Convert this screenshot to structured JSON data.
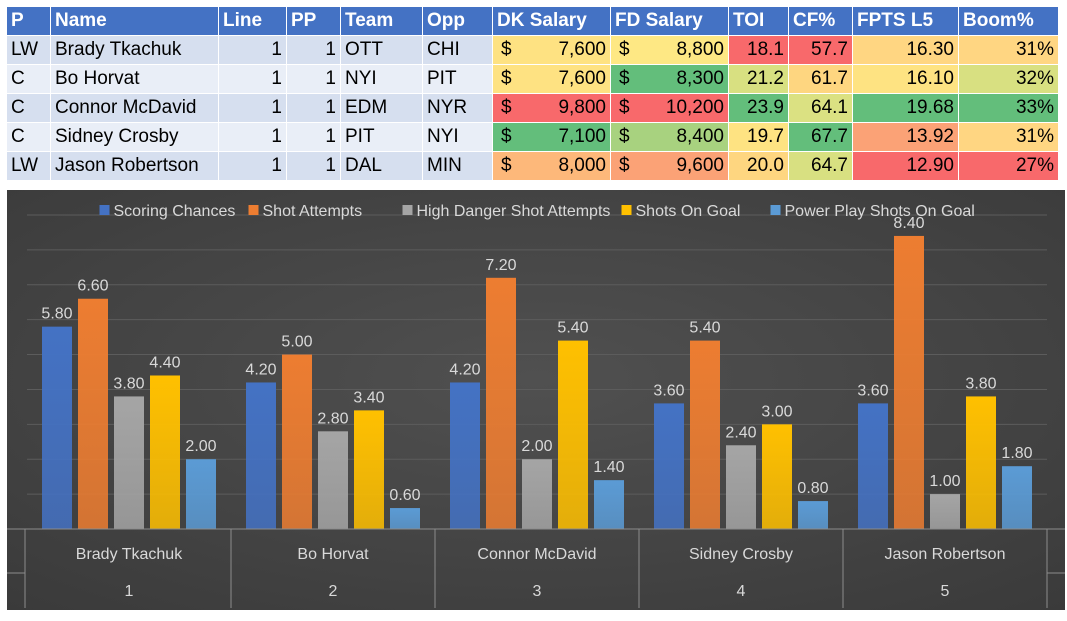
{
  "table": {
    "headers": [
      "P",
      "Name",
      "Line",
      "PP",
      "Team",
      "Opp",
      "DK Salary",
      "FD Salary",
      "TOI",
      "CF%",
      "FPTS L5",
      "Boom%"
    ],
    "rows": [
      {
        "p": "LW",
        "name": "Brady Tkachuk",
        "line": "1",
        "pp": "1",
        "team": "OTT",
        "opp": "CHI",
        "dk_cur": "$",
        "dk": "7,600",
        "fd_cur": "$",
        "fd": "8,800",
        "toi": "18.1",
        "cf": "57.7",
        "fpts": "16.30",
        "boom": "31%"
      },
      {
        "p": "C",
        "name": "Bo Horvat",
        "line": "1",
        "pp": "1",
        "team": "NYI",
        "opp": "PIT",
        "dk_cur": "$",
        "dk": "7,600",
        "fd_cur": "$",
        "fd": "8,300",
        "toi": "21.2",
        "cf": "61.7",
        "fpts": "16.10",
        "boom": "32%"
      },
      {
        "p": "C",
        "name": "Connor McDavid",
        "line": "1",
        "pp": "1",
        "team": "EDM",
        "opp": "NYR",
        "dk_cur": "$",
        "dk": "9,800",
        "fd_cur": "$",
        "fd": "10,200",
        "toi": "23.9",
        "cf": "64.1",
        "fpts": "19.68",
        "boom": "33%"
      },
      {
        "p": "C",
        "name": "Sidney Crosby",
        "line": "1",
        "pp": "1",
        "team": "PIT",
        "opp": "NYI",
        "dk_cur": "$",
        "dk": "7,100",
        "fd_cur": "$",
        "fd": "8,400",
        "toi": "19.7",
        "cf": "67.7",
        "fpts": "13.92",
        "boom": "31%"
      },
      {
        "p": "LW",
        "name": "Jason Robertson",
        "line": "1",
        "pp": "1",
        "team": "DAL",
        "opp": "MIN",
        "dk_cur": "$",
        "dk": "8,000",
        "fd_cur": "$",
        "fd": "9,600",
        "toi": "20.0",
        "cf": "64.7",
        "fpts": "12.90",
        "boom": "27%"
      }
    ],
    "heat_colors": {
      "dk": [
        "#fee282",
        "#fee282",
        "#f8696b",
        "#63be7b",
        "#fdb87a"
      ],
      "fd": [
        "#fee884",
        "#63be7b",
        "#f8696b",
        "#a8d27f",
        "#fba276"
      ],
      "toi": [
        "#f8696b",
        "#d8e081",
        "#63be7b",
        "#fee382",
        "#fed680"
      ],
      "cf": [
        "#f8696b",
        "#fed680",
        "#dbe182",
        "#63be7b",
        "#d8e081"
      ],
      "fpts": [
        "#ffd682",
        "#fee382",
        "#63be7b",
        "#fba276",
        "#f8696b"
      ],
      "boom": [
        "#ffd682",
        "#d8e081",
        "#63be7b",
        "#ffd682",
        "#f8696b"
      ]
    }
  },
  "chart_data": {
    "type": "bar",
    "title": "",
    "categories": [
      "Brady Tkachuk",
      "Bo Horvat",
      "Connor McDavid",
      "Sidney Crosby",
      "Jason Robertson"
    ],
    "category_index": [
      "1",
      "2",
      "3",
      "4",
      "5"
    ],
    "series": [
      {
        "name": "Scoring Chances",
        "color": "#4472c4",
        "values": [
          5.8,
          4.2,
          4.2,
          3.6,
          3.6
        ]
      },
      {
        "name": "Shot Attempts",
        "color": "#ed7d31",
        "values": [
          6.6,
          5.0,
          7.2,
          5.4,
          8.4
        ]
      },
      {
        "name": "High Danger Shot Attempts",
        "color": "#a5a5a5",
        "values": [
          3.8,
          2.8,
          2.0,
          2.4,
          1.0
        ]
      },
      {
        "name": "Shots On Goal",
        "color": "#ffc000",
        "values": [
          4.4,
          3.4,
          5.4,
          3.0,
          3.8
        ]
      },
      {
        "name": "Power Play Shots On Goal",
        "color": "#5b9bd5",
        "values": [
          2.0,
          0.6,
          1.4,
          0.8,
          1.8
        ]
      }
    ],
    "ylim": [
      0,
      9
    ],
    "grid": true,
    "legend": "top",
    "xlabel": "",
    "ylabel": "",
    "background": "#3a3a3a"
  }
}
